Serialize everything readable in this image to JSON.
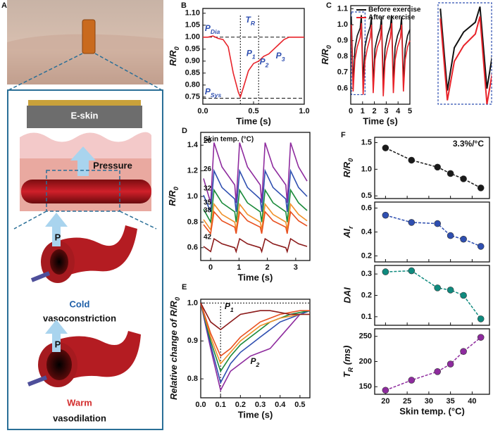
{
  "illustration": {
    "label": "A",
    "eskin": "E-skin",
    "pressure": "Pressure",
    "p_cold": "P",
    "cold": "Cold",
    "constriction": "vasoconstriction",
    "p_warm": "P",
    "warm": "Warm",
    "dilation": "vasodilation"
  },
  "chart_data": [
    {
      "type": "line",
      "panel": "B",
      "xlabel": "Time (s)",
      "ylabel": {
        "text": "R/R",
        "sub": "0"
      },
      "x": [
        0,
        0.05,
        0.1,
        0.15,
        0.2,
        0.25,
        0.3,
        0.35,
        0.37,
        0.4,
        0.45,
        0.5,
        0.55,
        0.6,
        0.65,
        0.7,
        0.75,
        0.8,
        0.85,
        0.9,
        1.0
      ],
      "series": [
        {
          "color": "#e8232a",
          "values": [
            1.0,
            1.0,
            1.005,
            0.995,
            0.99,
            0.96,
            0.85,
            0.77,
            0.75,
            0.79,
            0.86,
            0.89,
            0.9,
            0.92,
            0.93,
            0.95,
            0.97,
            0.99,
            1.0,
            1.0,
            1.0
          ]
        }
      ],
      "xlim": [
        0,
        1
      ],
      "xticks": [
        {
          "value": 0,
          "label": "0.0"
        },
        0.5,
        {
          "value": 1,
          "label": "1.0"
        }
      ],
      "ylim": [
        0.72,
        1.12
      ],
      "yticks": [
        0.75,
        {
          "value": 0.8,
          "label": "0.80"
        },
        0.85,
        {
          "value": 0.9,
          "label": "0.90"
        },
        0.95,
        {
          "value": 1.0,
          "label": "1.00"
        },
        1.05,
        {
          "value": 1.1,
          "label": "1.10"
        }
      ],
      "hlines": [
        1.0,
        0.745
      ],
      "vlines": [
        0.37,
        0.55
      ],
      "annotations": [
        {
          "text": "P",
          "sub": "Dia"
        },
        {
          "text": "T",
          "sub": "R"
        },
        {
          "text": "P",
          "sub": "1"
        },
        {
          "text": "P",
          "sub": "2"
        },
        {
          "text": "P",
          "sub": "3"
        },
        {
          "text": "P",
          "sub": "Sys"
        }
      ]
    },
    {
      "type": "line",
      "panel": "C",
      "xlabel": "Time (s)",
      "ylabel": {
        "text": "R/R",
        "sub": "0"
      },
      "x": [
        0.05,
        0.2,
        0.35,
        0.55,
        0.8,
        0.9,
        1.05,
        1.2,
        1.4,
        1.65,
        1.75,
        1.9,
        2.05,
        2.25,
        2.5,
        2.6,
        2.75,
        2.9,
        3.1,
        3.35,
        3.45,
        3.6,
        3.75,
        3.95,
        4.2,
        4.3,
        4.45,
        4.6,
        4.8,
        5.0
      ],
      "series": [
        {
          "name": "Before exercise",
          "color": "#111111",
          "values": [
            1.05,
            0.63,
            0.85,
            0.93,
            0.98,
            1.06,
            0.64,
            0.86,
            0.93,
            0.99,
            1.05,
            0.62,
            0.85,
            0.92,
            0.98,
            1.05,
            0.63,
            0.85,
            0.93,
            0.99,
            1.06,
            0.64,
            0.86,
            0.93,
            0.98,
            1.05,
            0.64,
            0.85,
            0.93,
            0.97
          ]
        },
        {
          "name": "After exercise",
          "color": "#e8232a",
          "values": [
            1.0,
            0.58,
            0.78,
            0.86,
            0.92,
            1.01,
            0.56,
            0.77,
            0.85,
            0.92,
            1.0,
            0.57,
            0.78,
            0.86,
            0.91,
            1.0,
            0.55,
            0.77,
            0.85,
            0.92,
            1.01,
            0.57,
            0.78,
            0.86,
            0.92,
            1.0,
            0.58,
            0.78,
            0.86,
            0.9
          ]
        }
      ],
      "xlim": [
        0,
        5
      ],
      "xticks": [
        0,
        1,
        2,
        3,
        4,
        5
      ],
      "ylim": [
        0.5,
        1.12
      ],
      "yticks": [
        0.6,
        0.7,
        0.8,
        0.9,
        {
          "value": 1.0,
          "label": "1.0"
        },
        1.1
      ],
      "zoom": {
        "xlim": [
          0,
          1.15
        ],
        "ylim": [
          0.56,
          1.08
        ]
      }
    },
    {
      "type": "line",
      "panel": "D",
      "xlabel": "Time (s)",
      "ylabel": {
        "text": "R/R",
        "sub": "0"
      },
      "annotation": "Skin temp. (°C)",
      "x": [
        -0.25,
        0,
        0.12,
        0.4,
        0.85,
        0.9,
        1.02,
        1.3,
        1.75,
        1.8,
        1.92,
        2.2,
        2.65,
        2.7,
        2.82,
        3.1,
        3.4
      ],
      "series": [
        {
          "name": "20",
          "color": "#8e2b9e",
          "values": [
            1.14,
            0.95,
            1.42,
            1.23,
            1.09,
            0.95,
            1.42,
            1.23,
            1.09,
            0.95,
            1.42,
            1.23,
            1.09,
            0.95,
            1.42,
            1.23,
            1.12
          ]
        },
        {
          "name": "26",
          "color": "#2f4fb0",
          "values": [
            1.01,
            0.88,
            1.2,
            1.07,
            0.98,
            0.88,
            1.2,
            1.07,
            0.98,
            0.88,
            1.2,
            1.07,
            0.98,
            0.88,
            1.2,
            1.07,
            1.0
          ]
        },
        {
          "name": "32",
          "color": "#1a8a3a",
          "values": [
            0.9,
            0.8,
            1.05,
            0.95,
            0.88,
            0.8,
            1.05,
            0.95,
            0.88,
            0.8,
            1.05,
            0.95,
            0.88,
            0.8,
            1.05,
            0.95,
            0.89
          ]
        },
        {
          "name": "35",
          "color": "#f0902a",
          "values": [
            0.82,
            0.74,
            0.94,
            0.86,
            0.8,
            0.74,
            0.94,
            0.86,
            0.8,
            0.74,
            0.94,
            0.86,
            0.8,
            0.74,
            0.94,
            0.86,
            0.81
          ]
        },
        {
          "name": "38",
          "color": "#e8501f",
          "values": [
            0.78,
            0.71,
            0.88,
            0.81,
            0.76,
            0.71,
            0.88,
            0.81,
            0.76,
            0.71,
            0.88,
            0.81,
            0.76,
            0.71,
            0.88,
            0.81,
            0.77
          ]
        },
        {
          "name": "42",
          "color": "#8b1a1a",
          "values": [
            0.61,
            0.57,
            0.67,
            0.63,
            0.6,
            0.57,
            0.67,
            0.63,
            0.6,
            0.57,
            0.67,
            0.63,
            0.6,
            0.57,
            0.67,
            0.63,
            0.61
          ]
        }
      ],
      "xlim": [
        -0.35,
        3.5
      ],
      "xticks": [
        0,
        1,
        2,
        3
      ],
      "ylim": [
        0.5,
        1.5
      ],
      "yticks": [
        0.6,
        0.8,
        {
          "value": 1.0,
          "label": "1.0"
        },
        1.2,
        1.4
      ]
    },
    {
      "type": "line",
      "panel": "E",
      "xlabel": "Time (s)",
      "ylabel": {
        "text": "Relative change of R/R",
        "sub": "0"
      },
      "x": [
        0,
        0.05,
        0.1,
        0.15,
        0.2,
        0.25,
        0.3,
        0.35,
        0.4,
        0.45,
        0.5,
        0.55
      ],
      "series": [
        {
          "color": "#8e2b9e",
          "values": [
            1.0,
            0.88,
            0.77,
            0.82,
            0.84,
            0.86,
            0.87,
            0.88,
            0.91,
            0.94,
            0.97,
            0.98
          ]
        },
        {
          "color": "#2f4fb0",
          "values": [
            1.0,
            0.89,
            0.79,
            0.84,
            0.87,
            0.89,
            0.91,
            0.93,
            0.95,
            0.96,
            0.97,
            0.98
          ]
        },
        {
          "color": "#1a8a3a",
          "values": [
            1.0,
            0.9,
            0.82,
            0.86,
            0.89,
            0.91,
            0.93,
            0.95,
            0.96,
            0.97,
            0.975,
            0.98
          ]
        },
        {
          "color": "#f0902a",
          "values": [
            1.0,
            0.91,
            0.84,
            0.87,
            0.9,
            0.92,
            0.94,
            0.95,
            0.96,
            0.965,
            0.97,
            0.97
          ]
        },
        {
          "color": "#e8501f",
          "values": [
            1.0,
            0.92,
            0.86,
            0.88,
            0.91,
            0.93,
            0.95,
            0.96,
            0.97,
            0.975,
            0.98,
            0.98
          ]
        },
        {
          "color": "#8b1a1a",
          "values": [
            1.0,
            0.95,
            0.93,
            0.95,
            0.97,
            0.975,
            0.98,
            0.98,
            0.975,
            0.97,
            0.97,
            0.97
          ]
        }
      ],
      "xlim": [
        0,
        0.55
      ],
      "xticks": [
        {
          "value": 0,
          "label": "0.0"
        },
        0.1,
        0.2,
        0.3,
        0.4,
        0.5
      ],
      "ylim": [
        0.75,
        1.01
      ],
      "yticks": [
        0.8,
        0.9,
        {
          "value": 1.0,
          "label": "1.0"
        }
      ],
      "hlines": [
        1.0
      ],
      "vlines": [
        0.1
      ],
      "annotations": [
        {
          "text": "P",
          "sub": "1"
        },
        {
          "text": "P",
          "sub": "2"
        }
      ]
    },
    {
      "type": "line",
      "panel": "F",
      "ylabel": {
        "text": "R/R",
        "sub": "0"
      },
      "annotation": "3.3%/°C",
      "markers": true,
      "line_style": "dashed",
      "xtick_labels": false,
      "x": [
        20,
        26,
        32,
        35,
        38,
        42
      ],
      "series": [
        {
          "color": "#1a1a1a",
          "values": [
            1.4,
            1.17,
            1.04,
            0.92,
            0.82,
            0.65
          ]
        }
      ],
      "xlim": [
        17.5,
        44
      ],
      "xticks": [
        20,
        25,
        30,
        35,
        40
      ],
      "ylim": [
        0.45,
        1.6
      ],
      "yticks": [
        0.5,
        {
          "value": 1.0,
          "label": "1.0"
        },
        1.5
      ]
    },
    {
      "type": "line",
      "ylabel": {
        "text": "AI",
        "sub": "r"
      },
      "markers": true,
      "line_style": "dashed",
      "xtick_labels": false,
      "x": [
        20,
        26,
        32,
        35,
        38,
        42
      ],
      "series": [
        {
          "color": "#2f4fb0",
          "values": [
            0.54,
            0.48,
            0.47,
            0.37,
            0.34,
            0.28
          ]
        }
      ],
      "xlim": [
        17.5,
        44
      ],
      "xticks": [
        20,
        25,
        30,
        35,
        40
      ],
      "ylim": [
        0.15,
        0.65
      ],
      "yticks": [
        0.2,
        0.4,
        0.6
      ]
    },
    {
      "type": "line",
      "ylabel": "DAI",
      "markers": true,
      "line_style": "dashed",
      "xtick_labels": false,
      "x": [
        20,
        26,
        32,
        35,
        38,
        42
      ],
      "series": [
        {
          "color": "#0f8a7e",
          "values": [
            0.31,
            0.315,
            0.235,
            0.225,
            0.2,
            0.09
          ]
        }
      ],
      "xlim": [
        17.5,
        44
      ],
      "xticks": [
        20,
        25,
        30,
        35,
        40
      ],
      "ylim": [
        0.06,
        0.34
      ],
      "yticks": [
        0.1,
        0.2,
        0.3
      ]
    },
    {
      "type": "line",
      "xlabel": "Skin temp. (°C)",
      "ylabel": {
        "text": "T",
        "sub": "R",
        "rest": " (ms)"
      },
      "markers": true,
      "line_style": "dashed",
      "x": [
        20,
        26,
        32,
        35,
        38,
        42
      ],
      "series": [
        {
          "color": "#8e2b9e",
          "values": [
            143,
            163,
            180,
            195,
            220,
            248
          ]
        }
      ],
      "xlim": [
        17.5,
        44
      ],
      "xticks": [
        20,
        25,
        30,
        35,
        40
      ],
      "ylim": [
        135,
        265
      ],
      "yticks": [
        150,
        200,
        250
      ]
    }
  ]
}
